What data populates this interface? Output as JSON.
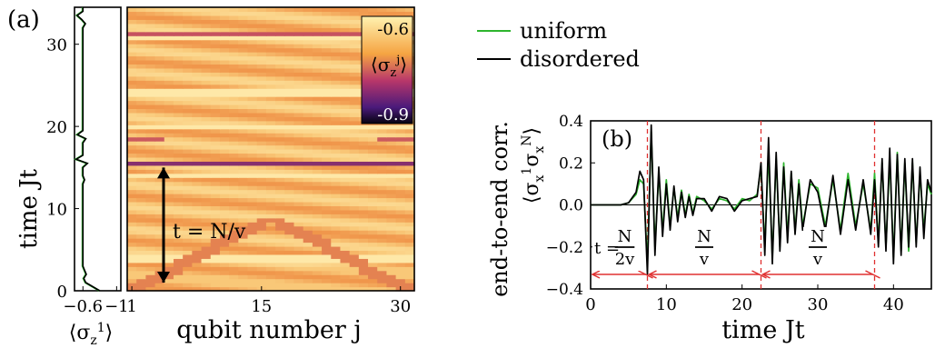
{
  "chart_data": [
    {
      "panel": "(a)",
      "type": "line",
      "xlabel": "⟨σ_z^1⟩",
      "ylabel": "time Jt",
      "xticks": [
        "−0.6",
        "−1"
      ],
      "yticks": [
        "0",
        "10",
        "20",
        "30"
      ],
      "xlim": [
        -0.5,
        -1.05
      ],
      "ylim": [
        0,
        34.5
      ],
      "series": [
        {
          "name": "",
          "color": "#000000",
          "x": [
            -0.6,
            -0.6,
            -0.6,
            -0.61,
            -0.64,
            -0.62,
            -0.6,
            -0.6,
            -0.6,
            -0.6,
            -0.6,
            -0.6,
            -0.6,
            -0.6,
            -0.6,
            -0.6,
            -0.6,
            -0.6,
            -0.6,
            -0.6,
            -0.6,
            -0.6,
            -0.6,
            -0.6,
            -0.6,
            -0.6,
            -0.6,
            -0.62,
            -0.6,
            -0.6,
            -0.6,
            -0.6,
            -0.6,
            -0.6,
            -0.6,
            -0.6,
            -0.6,
            -0.6,
            -0.6,
            -0.6,
            -0.6,
            -0.6,
            -0.6,
            -0.6,
            -0.6,
            -0.6,
            -0.6,
            -0.6,
            -0.6,
            -0.6,
            -0.6,
            -0.6,
            -0.6,
            -0.6,
            -0.6,
            -0.6,
            -0.6,
            -0.6,
            -0.6,
            -0.6,
            -0.6,
            -0.6,
            -0.6,
            -0.6,
            -0.6,
            -0.6,
            -0.6,
            -0.6,
            -0.6,
            -0.6
          ],
          "y": [
            0,
            0.5,
            1,
            1.5,
            2,
            2.5,
            3,
            3.5,
            4,
            4.5,
            5,
            5.5,
            6,
            6.5,
            7,
            7.5,
            8,
            8.5,
            9,
            9.5,
            10,
            10.5,
            11,
            11.5,
            12,
            12.5,
            13,
            13.5,
            14,
            14.5,
            15,
            15.5,
            16,
            16.5,
            17,
            17.5,
            18,
            18.5,
            19,
            19.5,
            20,
            20.5,
            21,
            21.5,
            22,
            22.5,
            23,
            23.5,
            24,
            24.5,
            25,
            25.5,
            26,
            26.5,
            27,
            27.5,
            28,
            28.5,
            29,
            29.5,
            30,
            30.5,
            31,
            31.5,
            32,
            32.5,
            33,
            33.5,
            34,
            34.5
          ]
        }
      ]
    },
    {
      "panel": "(a)",
      "type": "heatmap",
      "xlabel": "qubit number j",
      "xticks": [
        "1",
        "15",
        "30"
      ],
      "xlim": [
        1,
        31
      ],
      "ylim": [
        0,
        34.5
      ],
      "colorbar": {
        "label": "⟨σ_z^j⟩",
        "max_label": "-0.6",
        "min_label": "-0.9",
        "range": [
          -0.6,
          -0.9
        ]
      },
      "annotation": "t = N/v",
      "annotation_arrow_y": [
        0,
        15
      ]
    },
    {
      "panel": "(b)",
      "type": "line",
      "xlabel": "time Jt",
      "ylabel": "end-to-end corr.",
      "ylabel2": "⟨σ_x^1σ_x^N⟩",
      "xlim": [
        0,
        45
      ],
      "ylim": [
        -0.4,
        0.4
      ],
      "xticks": [
        0,
        10,
        20,
        30,
        40
      ],
      "yticks": [
        -0.4,
        -0.2,
        0.0,
        0.2,
        0.4
      ],
      "ytick_labels": [
        "−0.4",
        "−0.2",
        "0.0",
        "0.2",
        "0.4"
      ],
      "vlines": [
        7.5,
        22.5,
        37.5
      ],
      "interval_labels": [
        "t =",
        "N",
        "2v",
        "N",
        "v",
        "N",
        "v"
      ],
      "legend": {
        "position": "top-left",
        "entries": [
          "uniform",
          "disordered"
        ]
      },
      "series": [
        {
          "name": "uniform",
          "color": "#2db52d",
          "x": [
            0,
            2,
            4,
            5,
            6,
            6.5,
            7,
            7.5,
            8,
            8.5,
            9,
            9.5,
            10,
            10.5,
            11,
            11.5,
            12,
            12.5,
            13,
            13.5,
            14,
            15,
            16,
            17,
            18,
            19,
            20,
            21,
            22,
            22.5,
            23,
            23.5,
            24,
            24.5,
            25,
            25.5,
            26,
            26.5,
            27,
            27.5,
            28,
            29,
            30,
            31,
            32,
            33,
            34,
            35,
            36,
            37,
            37.5,
            38,
            38.5,
            39,
            39.5,
            40,
            40.5,
            41,
            41.5,
            42,
            42.5,
            43,
            43.5,
            44,
            44.5,
            45
          ],
          "y": [
            0,
            0,
            0,
            0.01,
            0.05,
            0.12,
            0.1,
            -0.28,
            0.35,
            -0.2,
            0.15,
            -0.12,
            0.12,
            -0.1,
            0.08,
            -0.06,
            0.07,
            -0.05,
            0.05,
            -0.04,
            0.04,
            0.02,
            -0.02,
            0.03,
            0.02,
            -0.02,
            0.03,
            0.02,
            0.05,
            0.18,
            -0.2,
            0.25,
            -0.25,
            0.22,
            -0.2,
            0.2,
            -0.15,
            0.15,
            -0.12,
            0.12,
            -0.1,
            0.1,
            0.08,
            -0.1,
            0.12,
            -0.12,
            0.15,
            -0.1,
            0.1,
            -0.12,
            0.15,
            -0.18,
            0.2,
            -0.2,
            0.22,
            -0.25,
            0.25,
            -0.22,
            0.2,
            -0.22,
            0.2,
            -0.18,
            0.15,
            -0.12,
            0.1,
            0.05
          ]
        },
        {
          "name": "disordered",
          "color": "#000000",
          "x": [
            0,
            2,
            4,
            5,
            6,
            6.5,
            7,
            7.5,
            8,
            8.5,
            9,
            9.5,
            10,
            10.5,
            11,
            11.5,
            12,
            12.5,
            13,
            13.5,
            14,
            15,
            16,
            17,
            18,
            19,
            20,
            21,
            22,
            22.5,
            23,
            23.5,
            24,
            24.5,
            25,
            25.5,
            26,
            26.5,
            27,
            27.5,
            28,
            29,
            30,
            31,
            32,
            33,
            34,
            35,
            36,
            37,
            37.5,
            38,
            38.5,
            39,
            39.5,
            40,
            40.5,
            41,
            41.5,
            42,
            42.5,
            43,
            43.5,
            44,
            44.5,
            45
          ],
          "y": [
            0,
            0,
            0,
            0.01,
            0.06,
            0.16,
            0.12,
            -0.33,
            0.38,
            -0.24,
            0.18,
            -0.15,
            0.1,
            -0.12,
            0.09,
            -0.08,
            0.06,
            -0.06,
            0.04,
            -0.05,
            0.03,
            0.03,
            -0.03,
            0.04,
            0.03,
            -0.03,
            0.02,
            0.03,
            0.04,
            0.2,
            -0.24,
            0.32,
            -0.28,
            0.25,
            -0.22,
            0.18,
            -0.18,
            0.16,
            -0.14,
            0.1,
            -0.12,
            0.12,
            0.06,
            -0.12,
            0.14,
            -0.14,
            0.12,
            -0.12,
            0.12,
            -0.14,
            0.12,
            -0.2,
            0.22,
            -0.22,
            0.27,
            -0.28,
            0.24,
            -0.24,
            0.22,
            -0.2,
            0.22,
            -0.2,
            0.18,
            -0.16,
            0.12,
            0.06
          ]
        }
      ]
    }
  ],
  "labels": {
    "panel_a": "(a)",
    "panel_b": "(b)",
    "a_ylabel": "time Jt",
    "a_xlabel": "qubit number j",
    "a_small_xlabel": "⟨σz1⟩",
    "colorbar_top": "-0.6",
    "colorbar_bottom": "-0.9",
    "annot": "t = N/v",
    "legend_uniform": "uniform",
    "legend_disordered": "disordered",
    "b_ylabel": "end-to-end corr.",
    "b_xlabel": "time Jt"
  }
}
